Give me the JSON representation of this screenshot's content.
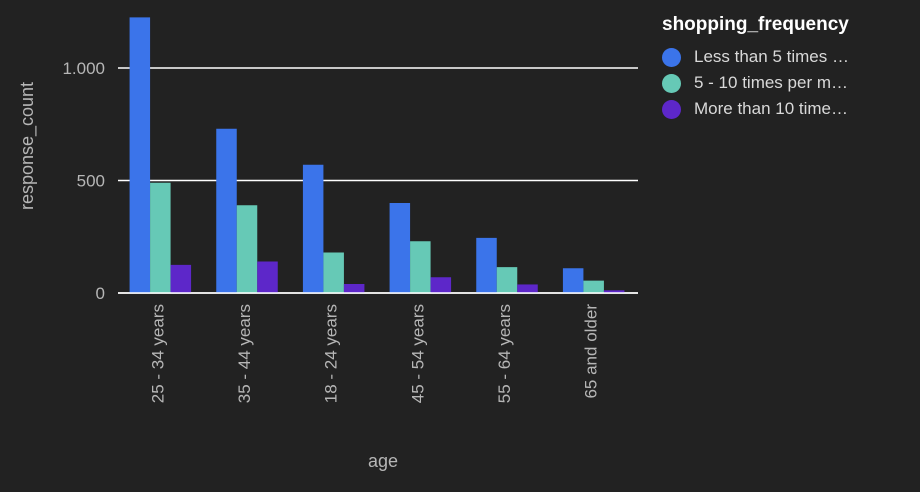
{
  "chart_data": {
    "type": "bar",
    "xlabel": "age",
    "ylabel": "response_count",
    "ylim": [
      0,
      1250
    ],
    "yticks": [
      {
        "value": 0,
        "label": "0"
      },
      {
        "value": 500,
        "label": "500"
      },
      {
        "value": 1000,
        "label": "1.000"
      }
    ],
    "grid": true,
    "categories": [
      "25 - 34 years",
      "35 - 44 years",
      "18 - 24 years",
      "45 - 54 years",
      "55 - 64 years",
      "65 and older"
    ],
    "legend": {
      "title": "shopping_frequency",
      "placement": "top-right"
    },
    "series": [
      {
        "name": "Less than 5 times …",
        "color": "#3b74ea",
        "values": [
          1225,
          730,
          570,
          400,
          245,
          110
        ]
      },
      {
        "name": "5 - 10 times per m…",
        "color": "#66c9b6",
        "values": [
          490,
          390,
          180,
          230,
          115,
          55
        ]
      },
      {
        "name": "More than 10 time…",
        "color": "#5d27c9",
        "values": [
          125,
          140,
          40,
          70,
          38,
          12
        ]
      }
    ]
  }
}
